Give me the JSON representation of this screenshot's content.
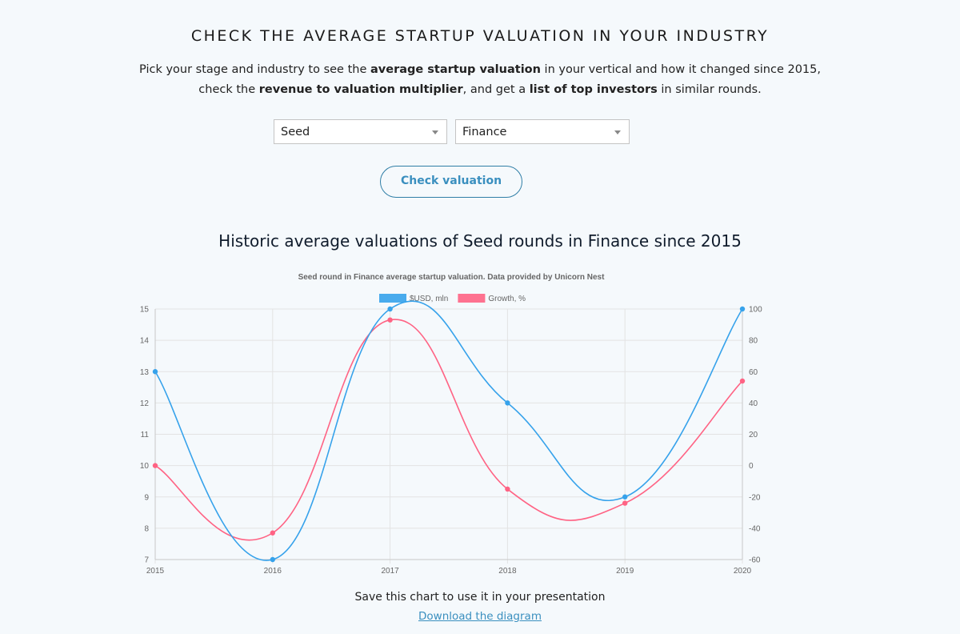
{
  "header": {
    "title": "CHECK THE AVERAGE STARTUP VALUATION IN YOUR INDUSTRY",
    "intro_parts": {
      "p1": "Pick your stage and industry to see the ",
      "b1": "average startup valuation",
      "p2": " in your vertical and how it changed since 2015,",
      "p3": "check the ",
      "b2": "revenue to valuation multiplier",
      "p4": ", and get a ",
      "b3": "list of top investors",
      "p5": " in similar rounds."
    }
  },
  "filters": {
    "stage_value": "Seed",
    "industry_value": "Finance",
    "button_label": "Check valuation"
  },
  "chart_section": {
    "heading": "Historic average valuations of Seed rounds in Finance since 2015",
    "save_note": "Save this chart to use it in your presentation",
    "download_label": "Download the diagram"
  },
  "chart_data": {
    "type": "line",
    "title": "Seed round in Finance average startup valuation. Data provided by Unicorn Nest",
    "x": [
      "2015",
      "2016",
      "2017",
      "2018",
      "2019",
      "2020"
    ],
    "series": [
      {
        "name": "$USD, mln",
        "axis": "left",
        "color": "#36a2eb",
        "values": [
          13,
          7,
          15,
          12,
          9,
          15
        ]
      },
      {
        "name": "Growth, %",
        "axis": "right",
        "color": "#ff6384",
        "values": [
          0,
          -43,
          93,
          -15,
          -24,
          54
        ]
      }
    ],
    "y_left": {
      "min": 7,
      "max": 15,
      "ticks": [
        "7",
        "8",
        "9",
        "10",
        "11",
        "12",
        "13",
        "14",
        "15"
      ]
    },
    "y_right": {
      "min": -60,
      "max": 100,
      "ticks": [
        "-60",
        "-40",
        "-20",
        "0",
        "20",
        "40",
        "60",
        "80",
        "100"
      ]
    },
    "grid": true,
    "legend": "top"
  }
}
